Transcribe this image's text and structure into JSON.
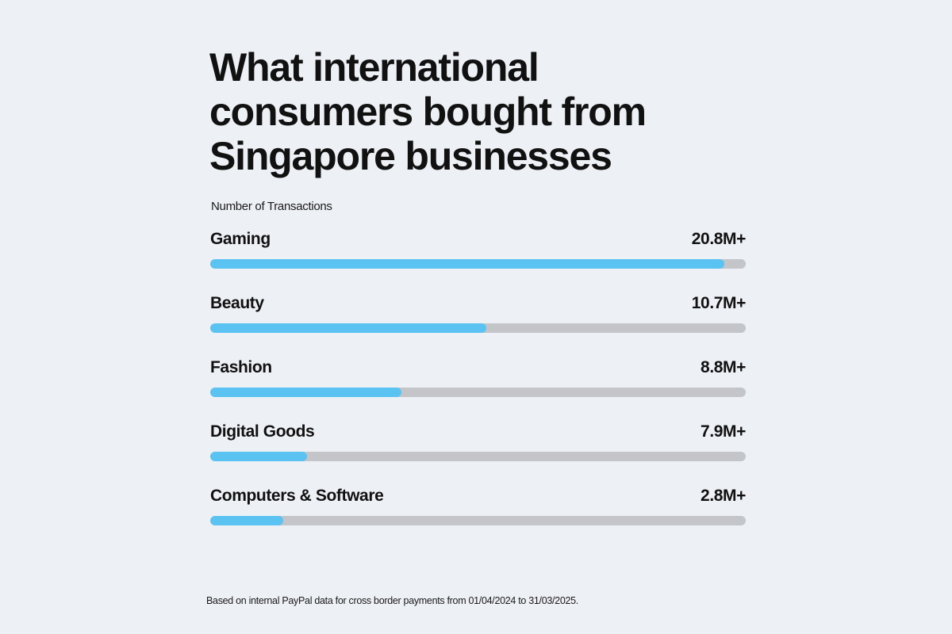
{
  "chart_data": {
    "type": "bar",
    "orientation": "horizontal",
    "title_lines": [
      "What international",
      "consumers bought from",
      "Singapore businesses"
    ],
    "subtitle": "Number of Transactions",
    "categories": [
      "Gaming",
      "Beauty",
      "Fashion",
      "Digital Goods",
      "Computers & Software"
    ],
    "value_labels": [
      "20.8M+",
      "10.7M+",
      "8.8M+",
      "7.9M+",
      "2.8M+"
    ],
    "fill_fractions": [
      0.96,
      0.515,
      0.357,
      0.18,
      0.137
    ],
    "footnote": "Based on internal PayPal data for cross border payments from 01/04/2024 to 31/03/2025.",
    "colors": {
      "background": "#edf0f4",
      "bar_fill": "#5bc3f2",
      "bar_track": "#c3c5c8",
      "text": "#111111"
    }
  }
}
